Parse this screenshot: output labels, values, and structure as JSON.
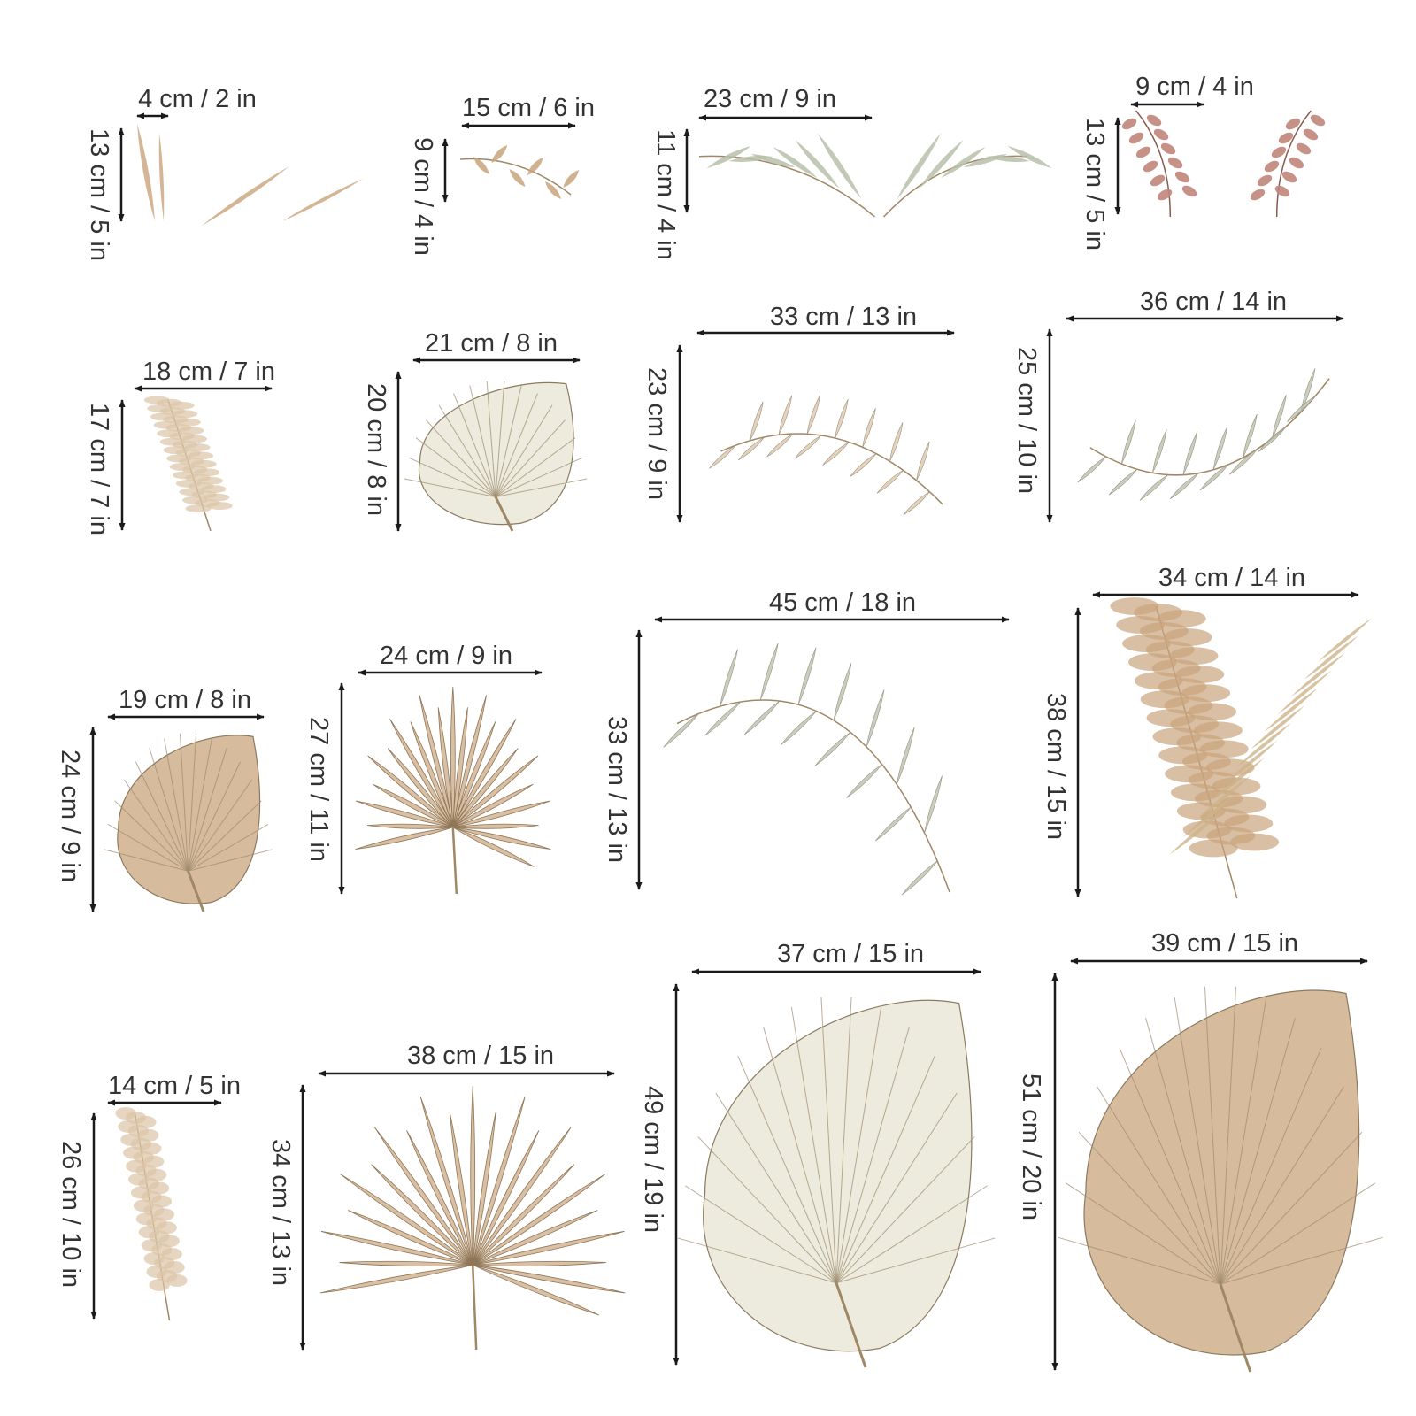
{
  "colors": {
    "background": "#ffffff",
    "dimension_line": "#1a1a1a",
    "label_text": "#333333",
    "sage_green": "#b7bfa9",
    "beige": "#dcc5a6",
    "tan": "#c9a47c",
    "terracotta": "#c0857a",
    "cream": "#e6e4d2"
  },
  "items": [
    {
      "width_label": "4 cm / 2 in",
      "height_label": "13 cm / 5 in",
      "icon": "dried-grass-blades-icon"
    },
    {
      "width_label": "15 cm / 6 in",
      "height_label": "9 cm / 4 in",
      "icon": "small-leafy-sprig-icon"
    },
    {
      "width_label": "23 cm / 9 in",
      "height_label": "11 cm / 4 in",
      "icon": "olive-branch-pair-icon"
    },
    {
      "width_label": "9 cm / 4 in",
      "height_label": "13 cm / 5 in",
      "icon": "pink-buds-pair-icon"
    },
    {
      "width_label": "18 cm / 7 in",
      "height_label": "17 cm / 7 in",
      "icon": "pampas-plume-icon"
    },
    {
      "width_label": "21 cm / 8 in",
      "height_label": "20 cm / 8 in",
      "icon": "cream-fan-palm-icon"
    },
    {
      "width_label": "33 cm / 13 in",
      "height_label": "23 cm / 9 in",
      "icon": "beige-palm-frond-icon"
    },
    {
      "width_label": "36 cm / 14 in",
      "height_label": "25 cm / 10 in",
      "icon": "green-palm-frond-icon"
    },
    {
      "width_label": "19 cm / 8 in",
      "height_label": "24 cm / 9 in",
      "icon": "tan-fan-palm-icon"
    },
    {
      "width_label": "24 cm / 9 in",
      "height_label": "27 cm / 11 in",
      "icon": "spiky-palm-icon"
    },
    {
      "width_label": "45 cm / 18 in",
      "height_label": "33 cm / 13 in",
      "icon": "arched-green-frond-icon"
    },
    {
      "width_label": "34 cm / 14 in",
      "height_label": "38 cm / 15 in",
      "icon": "pampas-and-palm-icon"
    },
    {
      "width_label": "14 cm / 5 in",
      "height_label": "26 cm / 10 in",
      "icon": "tall-pampas-icon"
    },
    {
      "width_label": "38 cm / 15 in",
      "height_label": "34 cm / 13 in",
      "icon": "large-spiky-palm-icon"
    },
    {
      "width_label": "37 cm / 15 in",
      "height_label": "49 cm / 19 in",
      "icon": "large-cream-fan-palm-icon"
    },
    {
      "width_label": "39 cm / 15 in",
      "height_label": "51 cm / 20 in",
      "icon": "large-tan-fan-palm-icon"
    }
  ]
}
